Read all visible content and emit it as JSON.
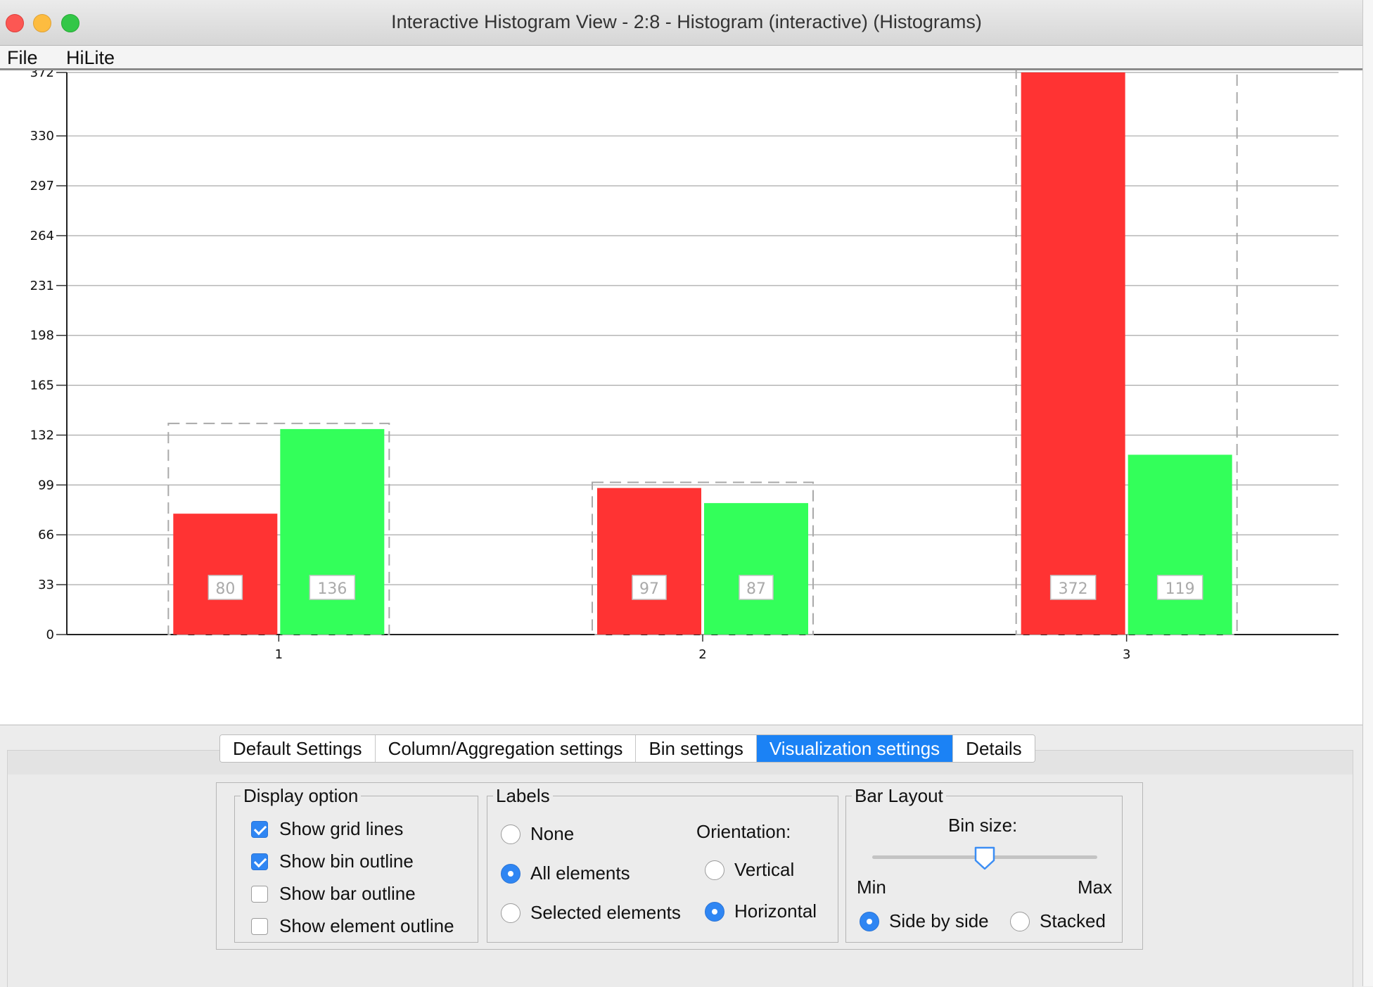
{
  "window": {
    "title": "Interactive Histogram View - 2:8 - Histogram (interactive) (Histograms)"
  },
  "menu": {
    "file": "File",
    "hilite": "HiLite"
  },
  "chart_data": {
    "type": "bar",
    "categories": [
      "1",
      "2",
      "3"
    ],
    "series": [
      {
        "color": "#ff3333",
        "values": [
          80,
          97,
          372
        ]
      },
      {
        "color": "#33ff5a",
        "values": [
          136,
          87,
          119
        ]
      }
    ],
    "bar_labels": [
      [
        "80",
        "136"
      ],
      [
        "97",
        "87"
      ],
      [
        "372",
        "119"
      ]
    ],
    "yticks": [
      0,
      33,
      66,
      99,
      132,
      165,
      198,
      231,
      264,
      297,
      330,
      372
    ],
    "ylim": [
      0,
      372
    ],
    "grid": true,
    "bin_outline": true
  },
  "tabs": [
    {
      "label": "Default Settings",
      "active": false
    },
    {
      "label": "Column/Aggregation settings",
      "active": false
    },
    {
      "label": "Bin settings",
      "active": false
    },
    {
      "label": "Visualization settings",
      "active": true
    },
    {
      "label": "Details",
      "active": false
    }
  ],
  "display_option": {
    "legend": "Display option",
    "show_grid_lines": {
      "label": "Show grid lines",
      "checked": true
    },
    "show_bin_outline": {
      "label": "Show bin outline",
      "checked": true
    },
    "show_bar_outline": {
      "label": "Show bar outline",
      "checked": false
    },
    "show_element_outline": {
      "label": "Show element outline",
      "checked": false
    }
  },
  "labels": {
    "legend": "Labels",
    "none": "None",
    "all_elements": "All elements",
    "selected_elements": "Selected elements",
    "selected": "All elements",
    "orientation_label": "Orientation:",
    "vertical": "Vertical",
    "horizontal": "Horizontal",
    "orientation_selected": "Horizontal"
  },
  "bar_layout": {
    "legend": "Bar Layout",
    "bin_size_label": "Bin size:",
    "min": "Min",
    "max": "Max",
    "bin_size_position": 0.5,
    "side_by_side": "Side by side",
    "stacked": "Stacked",
    "selected": "Side by side"
  }
}
